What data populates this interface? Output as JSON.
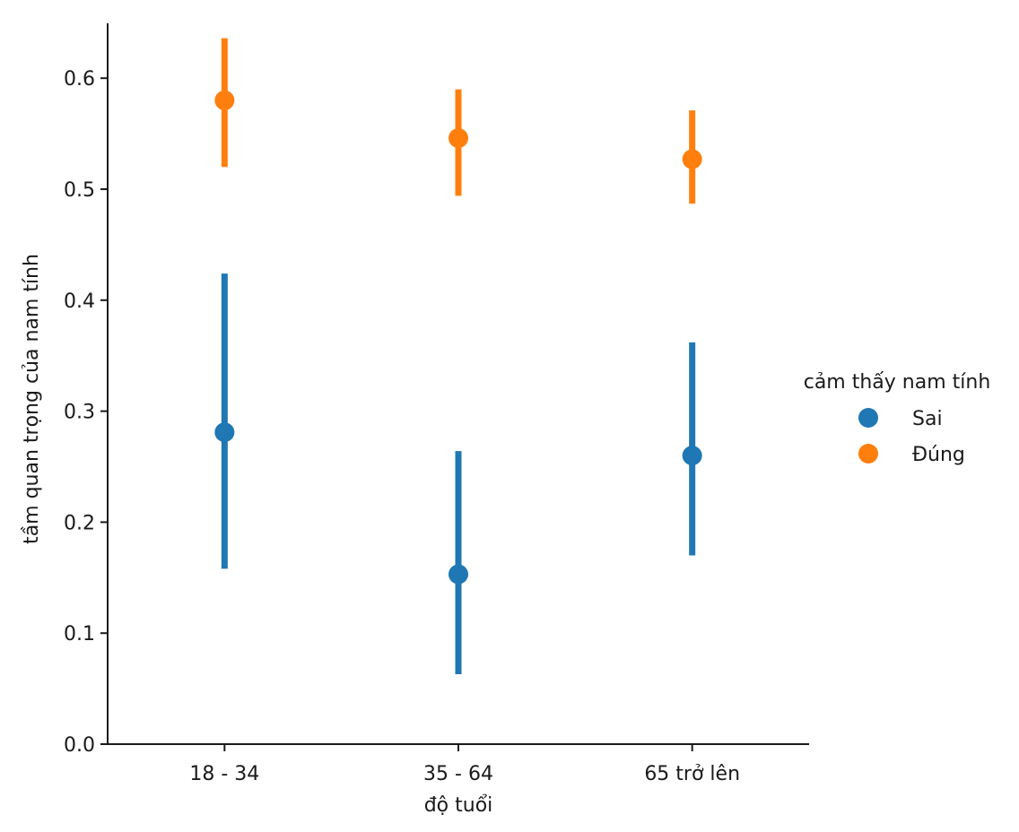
{
  "chart_data": {
    "type": "scatter",
    "subtype": "pointplot-with-error-bars",
    "title": "",
    "xlabel": "độ tuổi",
    "ylabel": "tầm quan trọng của nam tính",
    "categories": [
      "18 - 34",
      "35 - 64",
      "65 trở lên"
    ],
    "ylim": [
      0,
      0.65
    ],
    "yticks": [
      "0.0",
      "0.1",
      "0.2",
      "0.3",
      "0.4",
      "0.5",
      "0.6"
    ],
    "grid": false,
    "legend": {
      "title": "cảm thấy nam tính",
      "placement": "right"
    },
    "series": [
      {
        "name": "Sai",
        "color": "#1f77b4",
        "values": [
          0.281,
          0.153,
          0.26
        ],
        "ci_low": [
          0.158,
          0.063,
          0.17
        ],
        "ci_high": [
          0.424,
          0.264,
          0.362
        ]
      },
      {
        "name": "Đúng",
        "color": "#ff7f0e",
        "values": [
          0.58,
          0.546,
          0.527
        ],
        "ci_low": [
          0.52,
          0.494,
          0.487
        ],
        "ci_high": [
          0.636,
          0.59,
          0.571
        ]
      }
    ]
  }
}
